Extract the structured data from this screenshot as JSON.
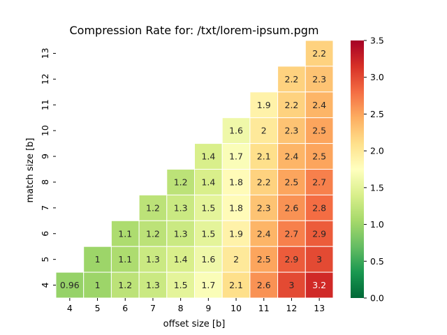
{
  "chart_data": {
    "type": "heatmap",
    "title": "Compression Rate for: /txt/lorem-ipsum.pgm",
    "xlabel": "offset size [b]",
    "ylabel": "match size [b]",
    "x_categories": [
      "4",
      "5",
      "6",
      "7",
      "8",
      "9",
      "10",
      "11",
      "12",
      "13"
    ],
    "y_categories": [
      "13",
      "12",
      "11",
      "10",
      "9",
      "8",
      "7",
      "6",
      "5",
      "4"
    ],
    "values": [
      [
        null,
        null,
        null,
        null,
        null,
        null,
        null,
        null,
        null,
        2.2
      ],
      [
        null,
        null,
        null,
        null,
        null,
        null,
        null,
        null,
        2.2,
        2.3
      ],
      [
        null,
        null,
        null,
        null,
        null,
        null,
        null,
        1.9,
        2.2,
        2.4
      ],
      [
        null,
        null,
        null,
        null,
        null,
        null,
        1.6,
        2,
        2.3,
        2.5
      ],
      [
        null,
        null,
        null,
        null,
        null,
        1.4,
        1.7,
        2.1,
        2.4,
        2.5
      ],
      [
        null,
        null,
        null,
        null,
        1.2,
        1.4,
        1.8,
        2.2,
        2.5,
        2.7
      ],
      [
        null,
        null,
        null,
        1.2,
        1.3,
        1.5,
        1.8,
        2.3,
        2.6,
        2.8
      ],
      [
        null,
        null,
        1.1,
        1.2,
        1.3,
        1.5,
        1.9,
        2.4,
        2.7,
        2.9
      ],
      [
        null,
        1,
        1.1,
        1.3,
        1.4,
        1.6,
        2,
        2.5,
        2.9,
        3
      ],
      [
        0.96,
        1,
        1.2,
        1.3,
        1.5,
        1.7,
        2.1,
        2.6,
        3,
        3.2
      ]
    ],
    "colormap": "RdYlGn_r",
    "vmin": 0,
    "vmax": 3.5,
    "colorbar_ticks": [
      "0.0",
      "0.5",
      "1.0",
      "1.5",
      "2.0",
      "2.5",
      "3.0",
      "3.5"
    ],
    "colors": [
      "#006837",
      "#1a9850",
      "#66bd63",
      "#a6d96a",
      "#d9ef8b",
      "#ffffbf",
      "#fee08b",
      "#fdae61",
      "#f46d43",
      "#d73027",
      "#a50026"
    ]
  }
}
